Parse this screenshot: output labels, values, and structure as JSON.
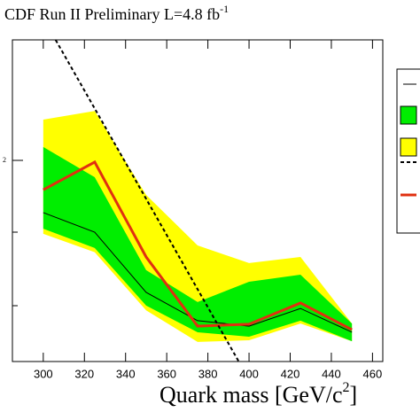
{
  "chart_data": {
    "type": "line",
    "title": "CDF Run II Preliminary L=4.8 fb",
    "title_superscript": "-1",
    "x_label": "Quark mass [GeV/c",
    "x_label_superscript": "2",
    "x_label_end": "]",
    "y_annotation": "2",
    "xlim": [
      285,
      465
    ],
    "xticks": [
      300,
      320,
      340,
      360,
      380,
      400,
      420,
      440,
      460
    ],
    "ylim": [
      0,
      100
    ],
    "x": [
      300,
      325,
      350,
      375,
      400,
      425,
      450
    ],
    "bands": [
      {
        "color": "#ffff00",
        "lower": [
          39.7,
          34.0,
          15.9,
          6.1,
          6.6,
          11.8,
          6.3
        ],
        "upper": [
          75.2,
          77.9,
          51.8,
          36.1,
          30.6,
          32.5,
          11.8
        ]
      },
      {
        "color": "#00ee00",
        "lower": [
          41.3,
          35.3,
          17.4,
          9.1,
          7.7,
          12.7,
          6.3
        ],
        "upper": [
          66.7,
          57.3,
          28.4,
          18.5,
          24.8,
          27.0,
          11.8
        ]
      }
    ],
    "series": [
      {
        "color": "#000000",
        "values": [
          46.3,
          40.2,
          21.5,
          12.7,
          11.0,
          16.5,
          9.1
        ]
      },
      {
        "color": "#e03010",
        "values": [
          53.4,
          62.0,
          32.5,
          11.0,
          11.6,
          18.2,
          9.9
        ]
      }
    ],
    "theory": {
      "color": "#000000",
      "x": [
        306,
        395
      ],
      "values": [
        100,
        0
      ]
    }
  }
}
